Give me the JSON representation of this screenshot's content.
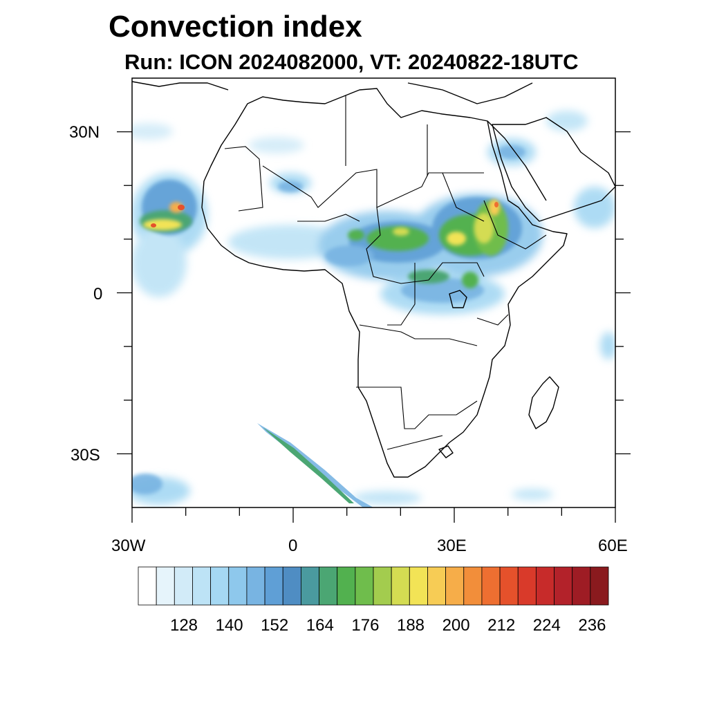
{
  "header": {
    "title": "Convection index",
    "subtitle": "Run: ICON 2024082000,  VT: 20240822-18UTC"
  },
  "map": {
    "region": "Africa",
    "lon_range": [
      -30,
      60
    ],
    "lat_range": [
      -40,
      40
    ],
    "lat_labels": [
      "30N",
      "0",
      "30S"
    ],
    "lon_labels": [
      "30W",
      "0",
      "30E",
      "60E"
    ]
  },
  "colorbar": {
    "tick_labels": [
      "128",
      "140",
      "152",
      "164",
      "176",
      "188",
      "200",
      "212",
      "224",
      "236"
    ],
    "colors": [
      "#ffffff",
      "#e6f4fb",
      "#d2ebf8",
      "#bde3f6",
      "#a5d8f3",
      "#8ec8ec",
      "#78b4e2",
      "#5f9fd6",
      "#4f8dc3",
      "#4a9a9f",
      "#4ba673",
      "#52b14f",
      "#6fbd4c",
      "#a3cc4e",
      "#d4dc52",
      "#f2e356",
      "#f7cc55",
      "#f6ad49",
      "#f28e3a",
      "#ee6f31",
      "#e5512b",
      "#d93a2a",
      "#c72b2a",
      "#b3222a",
      "#9e1c24",
      "#8a1a1e"
    ]
  }
}
